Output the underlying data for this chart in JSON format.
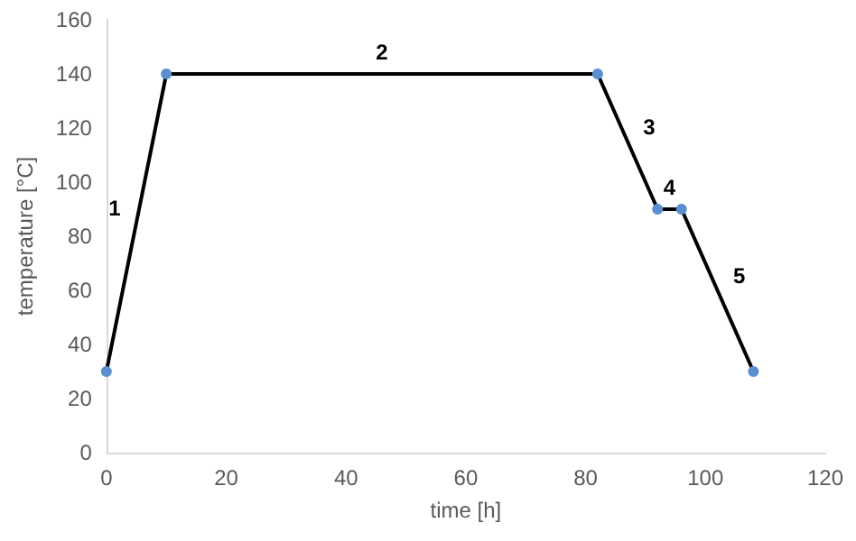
{
  "chart_data": {
    "type": "line",
    "xlabel": "time [h]",
    "ylabel": "temperature [°C]",
    "x": [
      0,
      10,
      82,
      92,
      96,
      108
    ],
    "series": [
      {
        "color": "#000000",
        "colors": [
          "#5b8fd0",
          "#5b8fd0",
          "#5b8fd0",
          "#5b8fd0",
          "#5b8fd0",
          "#5b8fd0"
        ],
        "values": [
          30,
          140,
          140,
          90,
          90,
          30
        ]
      }
    ],
    "xlim": [
      0,
      120
    ],
    "xticks": [
      0,
      20,
      40,
      60,
      80,
      100,
      120
    ],
    "ylim": [
      0,
      160
    ],
    "yticks": [
      0,
      20,
      40,
      60,
      80,
      100,
      120,
      140,
      160
    ],
    "grid": false,
    "marker": "circle",
    "line_style": "solid",
    "annotations": [
      "1",
      "2",
      "3",
      "4",
      "5"
    ]
  }
}
